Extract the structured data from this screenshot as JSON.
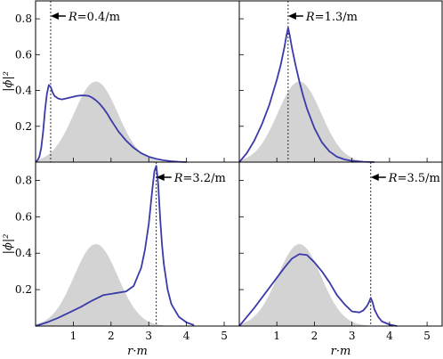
{
  "chart_data": [
    {
      "type": "area",
      "panel": "top-left",
      "annotation": "R=0.4/m",
      "R": 0.4,
      "xlim": [
        0,
        5.4
      ],
      "ylim": [
        0,
        0.9
      ],
      "yticks": [
        "0.2",
        "0.4",
        "0.6",
        "0.8"
      ],
      "ylabel": "|ϕ|²",
      "xlabel": "",
      "reference_area": {
        "center": 1.6,
        "peak": 0.45,
        "width": 0.58
      },
      "series": [
        {
          "x": [
            0,
            0.05,
            0.1,
            0.15,
            0.2,
            0.25,
            0.3,
            0.35,
            0.4,
            0.45,
            0.5,
            0.6,
            0.7,
            0.8,
            0.9,
            1.0,
            1.1,
            1.2,
            1.3,
            1.4,
            1.5,
            1.6,
            1.7,
            1.8,
            1.9,
            2.0,
            2.2,
            2.4,
            2.6,
            2.8,
            3.0,
            3.2,
            3.4,
            3.6,
            3.8,
            4.0
          ],
          "y": [
            0,
            0.01,
            0.03,
            0.08,
            0.17,
            0.29,
            0.38,
            0.43,
            0.42,
            0.39,
            0.37,
            0.355,
            0.35,
            0.355,
            0.36,
            0.365,
            0.37,
            0.372,
            0.372,
            0.37,
            0.36,
            0.345,
            0.325,
            0.3,
            0.27,
            0.235,
            0.17,
            0.12,
            0.08,
            0.05,
            0.03,
            0.018,
            0.01,
            0.005,
            0.002,
            0
          ]
        }
      ]
    },
    {
      "type": "area",
      "panel": "top-right",
      "annotation": "R=1.3/m",
      "R": 1.3,
      "xlim": [
        0,
        5.4
      ],
      "ylim": [
        0,
        0.9
      ],
      "reference_area": {
        "center": 1.6,
        "peak": 0.45,
        "width": 0.58
      },
      "series": [
        {
          "x": [
            0,
            0.2,
            0.4,
            0.6,
            0.8,
            1.0,
            1.1,
            1.2,
            1.25,
            1.3,
            1.35,
            1.4,
            1.5,
            1.6,
            1.7,
            1.8,
            2.0,
            2.2,
            2.4,
            2.6,
            2.8,
            3.0,
            3.3,
            3.6
          ],
          "y": [
            0,
            0.05,
            0.12,
            0.21,
            0.32,
            0.46,
            0.54,
            0.64,
            0.7,
            0.75,
            0.7,
            0.64,
            0.54,
            0.45,
            0.37,
            0.3,
            0.19,
            0.11,
            0.06,
            0.03,
            0.015,
            0.007,
            0.002,
            0
          ]
        }
      ]
    },
    {
      "type": "area",
      "panel": "bottom-left",
      "annotation": "R=3.2/m",
      "R": 3.2,
      "xlim": [
        0,
        5.4
      ],
      "ylim": [
        0,
        0.9
      ],
      "xticks": [
        "1",
        "2",
        "3",
        "4",
        "5"
      ],
      "yticks": [
        "0.2",
        "0.4",
        "0.6",
        "0.8"
      ],
      "ylabel": "|ϕ|²",
      "xlabel": "r·m",
      "reference_area": {
        "center": 1.6,
        "peak": 0.45,
        "width": 0.58
      },
      "series": [
        {
          "x": [
            0,
            0.3,
            0.6,
            0.9,
            1.2,
            1.5,
            1.8,
            2.1,
            2.4,
            2.6,
            2.8,
            2.9,
            3.0,
            3.05,
            3.1,
            3.15,
            3.2,
            3.25,
            3.3,
            3.35,
            3.4,
            3.5,
            3.6,
            3.8,
            4.0,
            4.2
          ],
          "y": [
            0,
            0.02,
            0.045,
            0.075,
            0.105,
            0.14,
            0.17,
            0.18,
            0.19,
            0.22,
            0.32,
            0.42,
            0.56,
            0.66,
            0.76,
            0.85,
            0.88,
            0.78,
            0.6,
            0.45,
            0.34,
            0.2,
            0.12,
            0.05,
            0.02,
            0.005
          ]
        }
      ]
    },
    {
      "type": "area",
      "panel": "bottom-right",
      "annotation": "R=3.5/m",
      "R": 3.5,
      "xlim": [
        0,
        5.4
      ],
      "ylim": [
        0,
        0.9
      ],
      "xticks": [
        "1",
        "2",
        "3",
        "4",
        "5"
      ],
      "xlabel": "r·m",
      "reference_area": {
        "center": 1.6,
        "peak": 0.45,
        "width": 0.58
      },
      "series": [
        {
          "x": [
            0,
            0.2,
            0.4,
            0.6,
            0.8,
            1.0,
            1.2,
            1.4,
            1.6,
            1.8,
            2.0,
            2.2,
            2.4,
            2.6,
            2.8,
            3.0,
            3.2,
            3.3,
            3.4,
            3.45,
            3.5,
            3.55,
            3.6,
            3.7,
            3.8,
            4.0,
            4.2
          ],
          "y": [
            0,
            0.05,
            0.1,
            0.155,
            0.21,
            0.265,
            0.32,
            0.37,
            0.395,
            0.39,
            0.35,
            0.3,
            0.24,
            0.17,
            0.12,
            0.08,
            0.075,
            0.085,
            0.11,
            0.13,
            0.155,
            0.13,
            0.09,
            0.05,
            0.025,
            0.008,
            0
          ]
        }
      ]
    }
  ]
}
